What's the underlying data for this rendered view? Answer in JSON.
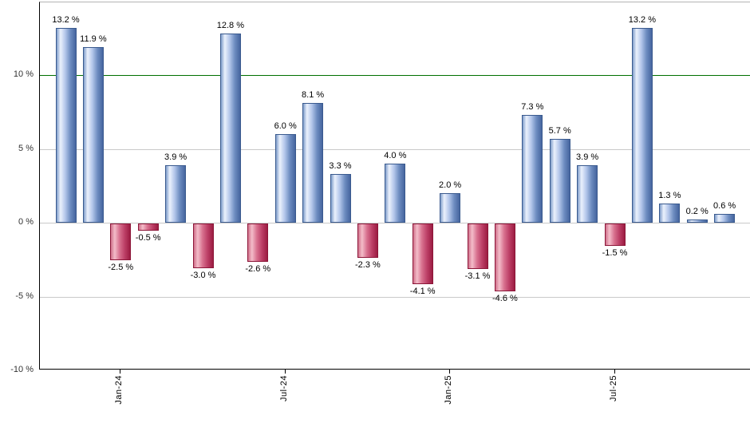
{
  "chart_data": {
    "type": "bar",
    "title": "",
    "xlabel": "",
    "ylabel": "",
    "unit": "%",
    "ylim": [
      -10,
      15
    ],
    "grid": true,
    "legend": "none",
    "values": [
      13.2,
      11.9,
      -2.5,
      -0.5,
      3.9,
      -3.0,
      12.8,
      -2.6,
      6.0,
      8.1,
      3.3,
      -2.3,
      4.0,
      -4.1,
      2.0,
      -3.1,
      -4.6,
      7.3,
      5.7,
      3.9,
      -1.5,
      13.2,
      1.3,
      0.2,
      0.6
    ],
    "bar_labels": [
      "13.2 %",
      "11.9 %",
      "-2.5 %",
      "-0.5 %",
      "3.9 %",
      "-3.0 %",
      "12.8 %",
      "-2.6 %",
      "6.0 %",
      "8.1 %",
      "3.3 %",
      "-2.3 %",
      "4.0 %",
      "-4.1 %",
      "2.0 %",
      "-3.1 %",
      "-4.6 %",
      "7.3 %",
      "5.7 %",
      "3.9 %",
      "-1.5 %",
      "13.2 %",
      "1.3 %",
      "0.2 %",
      "0.6 %"
    ],
    "y_ticks": [
      {
        "value": 10,
        "label": "10 %"
      },
      {
        "value": 5,
        "label": "5 %"
      },
      {
        "value": 0,
        "label": "0 %"
      },
      {
        "value": -5,
        "label": "-5 %"
      },
      {
        "value": -10,
        "label": "-10 %"
      }
    ],
    "x_ticks": [
      {
        "index": 2,
        "label": "Jan-24"
      },
      {
        "index": 8,
        "label": "Jul-24"
      },
      {
        "index": 14,
        "label": "Jan-25"
      },
      {
        "index": 20,
        "label": "Jul-25"
      }
    ],
    "threshold_line": {
      "value": 10,
      "color": "#007000"
    },
    "colors": {
      "positive_bar": "#7e9cce",
      "positive_bar_dark": "#3a5a8e",
      "positive_bar_light": "#ebf1fc",
      "negative_bar": "#c24a6e",
      "negative_bar_dark": "#8c1638",
      "negative_bar_light": "#f3bcc9",
      "gridline": "#c9c9c9",
      "axis": "#000000"
    }
  }
}
